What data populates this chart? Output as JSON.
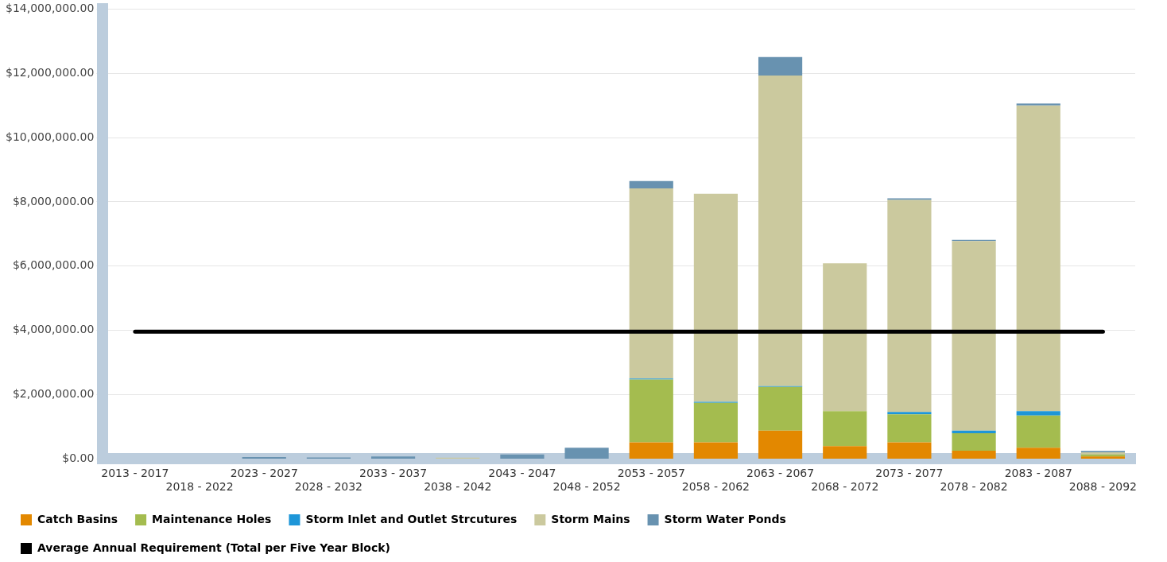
{
  "chart_data": {
    "type": "bar",
    "stacked": true,
    "categories": [
      "2013 - 2017",
      "2018 - 2022",
      "2023 - 2027",
      "2028 - 2032",
      "2033 - 2037",
      "2038 - 2042",
      "2043 - 2047",
      "2048 - 2052",
      "2053 - 2057",
      "2058 - 2062",
      "2063 - 2067",
      "2068 - 2072",
      "2073 - 2077",
      "2078 - 2082",
      "2083 - 2087",
      "2088 - 2092"
    ],
    "series": [
      {
        "name": "Catch Basins",
        "color": "#e38800",
        "values": [
          0,
          0,
          0,
          0,
          0,
          0,
          0,
          0,
          520000,
          520000,
          880000,
          400000,
          520000,
          260000,
          350000,
          80000
        ]
      },
      {
        "name": "Maintenance Holes",
        "color": "#a4bc4f",
        "values": [
          0,
          0,
          0,
          0,
          0,
          0,
          0,
          0,
          1950000,
          1230000,
          1360000,
          1090000,
          870000,
          540000,
          1000000,
          60000
        ]
      },
      {
        "name": "Storm Inlet and Outlet Strcutures",
        "color": "#1e96d8",
        "values": [
          0,
          0,
          0,
          0,
          0,
          0,
          0,
          0,
          30000,
          30000,
          30000,
          0,
          70000,
          80000,
          140000,
          0
        ]
      },
      {
        "name": "Storm Mains",
        "color": "#cbc99e",
        "values": [
          0,
          0,
          0,
          0,
          0,
          40000,
          0,
          0,
          5920000,
          6470000,
          9660000,
          4600000,
          6600000,
          5900000,
          9510000,
          70000
        ]
      },
      {
        "name": "Storm Water Ponds",
        "color": "#6892b0",
        "values": [
          0,
          0,
          60000,
          50000,
          80000,
          0,
          140000,
          350000,
          230000,
          0,
          580000,
          0,
          50000,
          40000,
          60000,
          40000
        ]
      },
      {
        "name": "Average Annual Requirement (Total per Five Year Block)",
        "type": "line",
        "color": "#000000",
        "values": [
          3960000,
          3960000,
          3960000,
          3960000,
          3960000,
          3960000,
          3960000,
          3960000,
          3960000,
          3960000,
          3960000,
          3960000,
          3960000,
          3960000,
          3960000,
          3960000
        ]
      }
    ],
    "ylim": [
      0,
      14000000
    ],
    "yticks": [
      {
        "value": 0,
        "label": "$0.00"
      },
      {
        "value": 2000000,
        "label": "$2,000,000.00"
      },
      {
        "value": 4000000,
        "label": "$4,000,000.00"
      },
      {
        "value": 6000000,
        "label": "$6,000,000.00"
      },
      {
        "value": 8000000,
        "label": "$8,000,000.00"
      },
      {
        "value": 10000000,
        "label": "$10,000,000.00"
      },
      {
        "value": 12000000,
        "label": "$12,000,000.00"
      },
      {
        "value": 14000000,
        "label": "$14,000,000.00"
      }
    ],
    "grid": "y",
    "legend": "bottom",
    "marker": "none",
    "line_style": "solid"
  }
}
